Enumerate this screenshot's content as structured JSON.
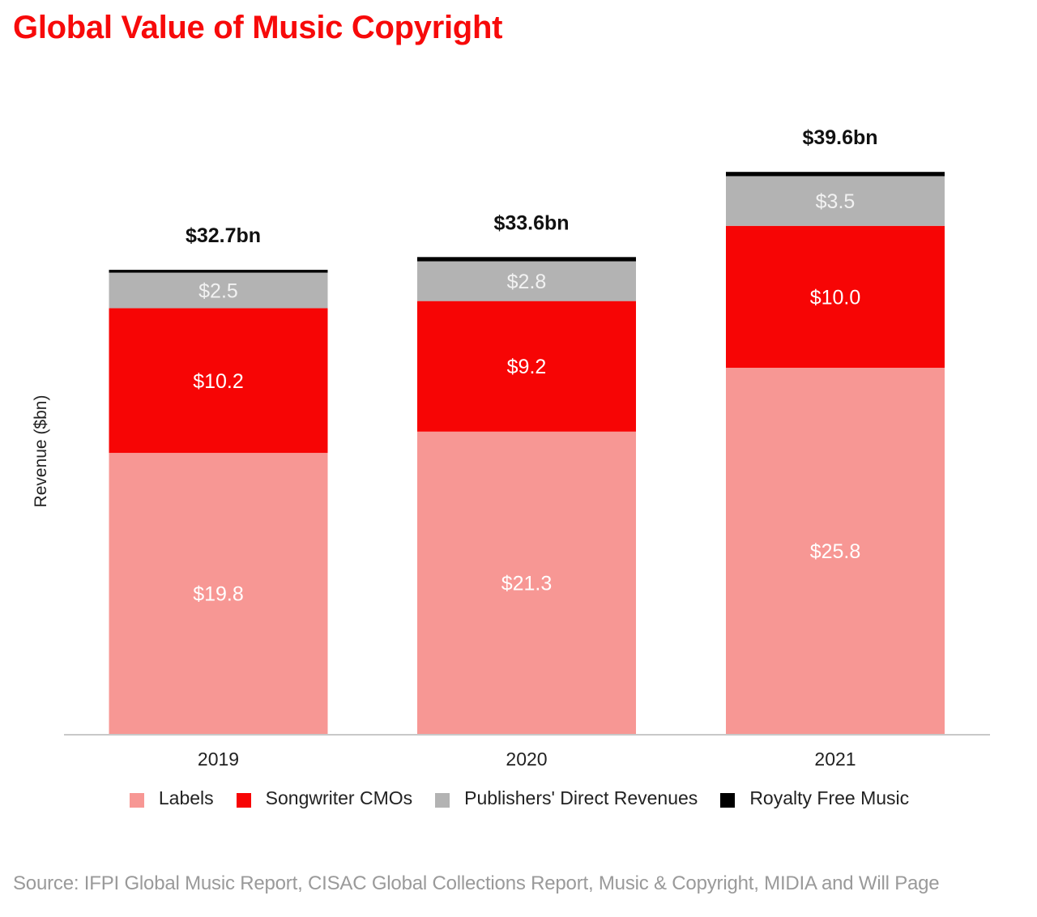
{
  "title": "Global Value of Music Copyright",
  "source": "Source: IFPI Global Music Report, CISAC Global Collections Report, Music & Copyright, MIDIA and Will Page",
  "chart_data": {
    "type": "bar",
    "stacked": true,
    "title": "Global Value of Music Copyright",
    "xlabel": "",
    "ylabel": "Revenue ($bn)",
    "ylim": [
      0,
      40
    ],
    "grid": false,
    "legend_position": "bottom",
    "categories": [
      "2019",
      "2020",
      "2021"
    ],
    "series": [
      {
        "name": "Labels",
        "color": "#F79794",
        "values": [
          19.8,
          21.3,
          25.8
        ],
        "labels": [
          "$19.8",
          "$21.3",
          "$25.8"
        ],
        "label_color": "#ffffff"
      },
      {
        "name": "Songwriter CMOs",
        "color": "#F70505",
        "values": [
          10.2,
          9.2,
          10.0
        ],
        "labels": [
          "$10.2",
          "$9.2",
          "$10.0"
        ],
        "label_color": "#ffffff"
      },
      {
        "name": "Publishers' Direct Revenues",
        "color": "#B3B3B3",
        "values": [
          2.5,
          2.8,
          3.5
        ],
        "labels": [
          "$2.5",
          "$2.8",
          "$3.5"
        ],
        "label_color": "#f2f2f2"
      },
      {
        "name": "Royalty Free Music",
        "color": "#000000",
        "values": [
          0.2,
          0.3,
          0.3
        ],
        "labels": [
          "",
          "",
          ""
        ],
        "label_color": "#ffffff"
      }
    ],
    "totals": [
      32.7,
      33.6,
      39.6
    ],
    "total_labels": [
      "$32.7bn",
      "$33.6bn",
      "$39.6bn"
    ]
  }
}
